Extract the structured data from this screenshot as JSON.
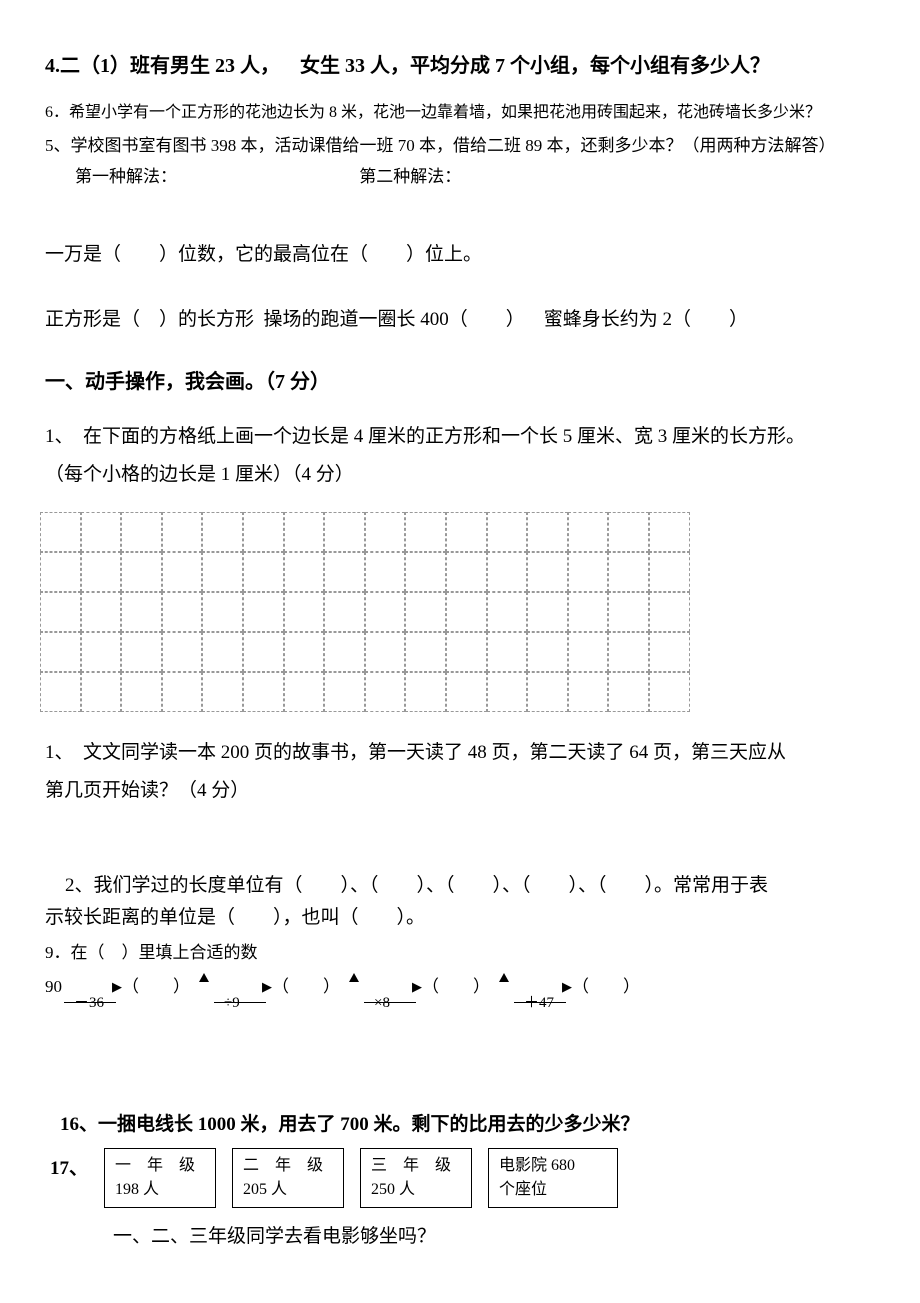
{
  "q4": "4.二（1）班有男生 23 人， 女生 33 人，平均分成 7 个小组，每个小组有多少人？",
  "q6": "6．希望小学有一个正方形的花池边长为 8 米，花池一边靠着墙，如果把花池用砖围起来，花池砖墙长多少米？",
  "q5": "5、学校图书室有图书 398 本，活动课借给一班 70 本，借给二班 89 本，还剩多少本？（用两种方法解答）",
  "method1_label": "第一种解法：",
  "method2_label": "第二种解法：",
  "fill1": "一万是（  ）位数，它的最高位在（  ）位上。",
  "fill2": "正方形是（ ）的长方形 操场的跑道一圈长 400（  ） 蜜蜂身长约为 2（  ）",
  "section_header": "一、动手操作，我会画。（7 分）",
  "draw_q1_a": "1、 在下面的方格纸上画一个边长是 4 厘米的正方形和一个长 5 厘米、宽 3 厘米的长方形。",
  "draw_q1_b": "（每个小格的边长是 1 厘米）（4 分）",
  "reading_q_a": "1、 文文同学读一本 200 页的故事书，第一天读了 48 页，第二天读了 64 页，第三天应从",
  "reading_q_b": "第几页开始读？（4 分）",
  "units_q_a": "2、我们学过的长度单位有（  ）、（  ）、（  ）、（  ）、（  ）。常常用于表",
  "units_q_b": "示较长距离的单位是（  ），也叫（  ）。",
  "q9_label": "9．在（ ）里填上合适的数",
  "q9_start": "90",
  "q9_ops": [
    "－36",
    "÷9",
    "×8",
    "＋47"
  ],
  "q9_blank": "（  ）",
  "q16": "16、一捆电线长 1000 米，用去了 700 米。剩下的比用去的少多少米？",
  "q17_num": "17、",
  "grades": [
    {
      "title": "一 年 级",
      "count": "198 人"
    },
    {
      "title": "二 年 级",
      "count": "205 人"
    },
    {
      "title": "三 年 级",
      "count": "250 人"
    }
  ],
  "cinema": {
    "line1": "电影院 680",
    "line2": "个座位"
  },
  "q17_question": "一、二、三年级同学去看电影够坐吗？",
  "grid": {
    "cols": 16,
    "rows": 5
  },
  "colors": {
    "text": "#000000",
    "bg": "#ffffff",
    "grid_border": "#999999"
  }
}
